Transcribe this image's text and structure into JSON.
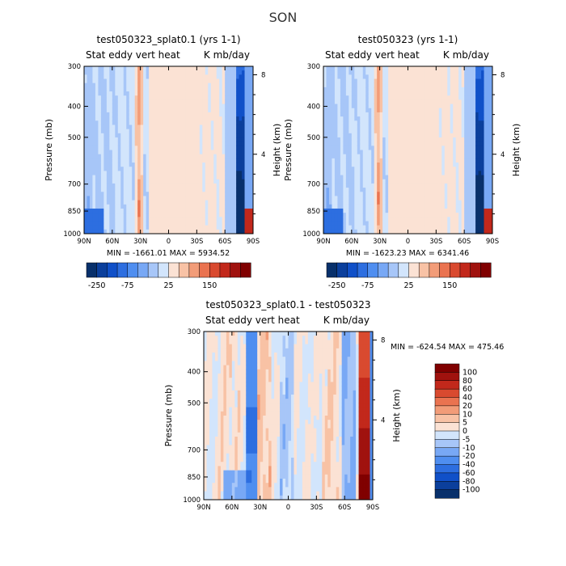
{
  "figure": {
    "title": "SON"
  },
  "chart_data": [
    {
      "type": "heatmap",
      "title": "test050323_splat0.1 (yrs 1-1)",
      "subtitle_left": "Stat eddy vert heat",
      "subtitle_right": "K mb/day",
      "ylabel": "Pressure (mb)",
      "ylabel_right": "Height (km)",
      "x_ticks": [
        "90N",
        "60N",
        "30N",
        "0",
        "30S",
        "60S",
        "90S"
      ],
      "y_ticks": [
        "300",
        "400",
        "500",
        "700",
        "850",
        "1000"
      ],
      "y_right_ticks": [
        "8",
        "4"
      ],
      "ylim": [
        1000,
        300
      ],
      "xlim": [
        90,
        -90
      ],
      "min_label": "MIN = -1661.01",
      "max_label": "MAX = 5934.52",
      "colorbar_ticks": [
        "-250",
        "-75",
        "25",
        "150"
      ],
      "colorbar_colors": [
        "#08306b",
        "#0b3f9c",
        "#1050c8",
        "#2d6ee0",
        "#4f8ef0",
        "#78a8f5",
        "#a7c6f8",
        "#d2e5fc",
        "#fbe2d4",
        "#f8c2a5",
        "#f29c78",
        "#ea7350",
        "#d94a2f",
        "#c2281b",
        "#a0120e",
        "#800000"
      ]
    },
    {
      "type": "heatmap",
      "title": "test050323 (yrs 1-1)",
      "subtitle_left": "Stat eddy vert heat",
      "subtitle_right": "K mb/day",
      "ylabel": "Pressure (mb)",
      "ylabel_right": "Height (km)",
      "x_ticks": [
        "90N",
        "60N",
        "30N",
        "0",
        "30S",
        "60S",
        "90S"
      ],
      "y_ticks": [
        "300",
        "400",
        "500",
        "700",
        "850",
        "1000"
      ],
      "y_right_ticks": [
        "8",
        "4"
      ],
      "ylim": [
        1000,
        300
      ],
      "xlim": [
        90,
        -90
      ],
      "min_label": "MIN = -1623.23",
      "max_label": "MAX = 6341.46",
      "colorbar_ticks": [
        "-250",
        "-75",
        "25",
        "150"
      ],
      "colorbar_colors": [
        "#08306b",
        "#0b3f9c",
        "#1050c8",
        "#2d6ee0",
        "#4f8ef0",
        "#78a8f5",
        "#a7c6f8",
        "#d2e5fc",
        "#fbe2d4",
        "#f8c2a5",
        "#f29c78",
        "#ea7350",
        "#d94a2f",
        "#c2281b",
        "#a0120e",
        "#800000"
      ]
    },
    {
      "type": "heatmap",
      "title": "test050323_splat0.1 - test050323",
      "subtitle_left": "Stat eddy vert heat",
      "subtitle_right": "K mb/day",
      "ylabel": "Pressure (mb)",
      "ylabel_right": "Height (km)",
      "x_ticks": [
        "90N",
        "60N",
        "30N",
        "0",
        "30S",
        "60S",
        "90S"
      ],
      "y_ticks": [
        "300",
        "400",
        "500",
        "700",
        "850",
        "1000"
      ],
      "y_right_ticks": [
        "8",
        "4"
      ],
      "ylim": [
        1000,
        300
      ],
      "xlim": [
        90,
        -90
      ],
      "min_label": "MIN = -624.54",
      "max_label": "MAX = 475.46",
      "colorbar_ticks": [
        "100",
        "80",
        "60",
        "40",
        "20",
        "10",
        "5",
        "0",
        "-5",
        "-10",
        "-20",
        "-40",
        "-60",
        "-80",
        "-100"
      ],
      "colorbar_colors": [
        "#800000",
        "#a0120e",
        "#c2281b",
        "#d94a2f",
        "#ea7350",
        "#f29c78",
        "#f8c2a5",
        "#fbe2d4",
        "#d2e5fc",
        "#a7c6f8",
        "#78a8f5",
        "#4f8ef0",
        "#2d6ee0",
        "#1050c8",
        "#0b3f9c",
        "#08306b"
      ]
    }
  ]
}
